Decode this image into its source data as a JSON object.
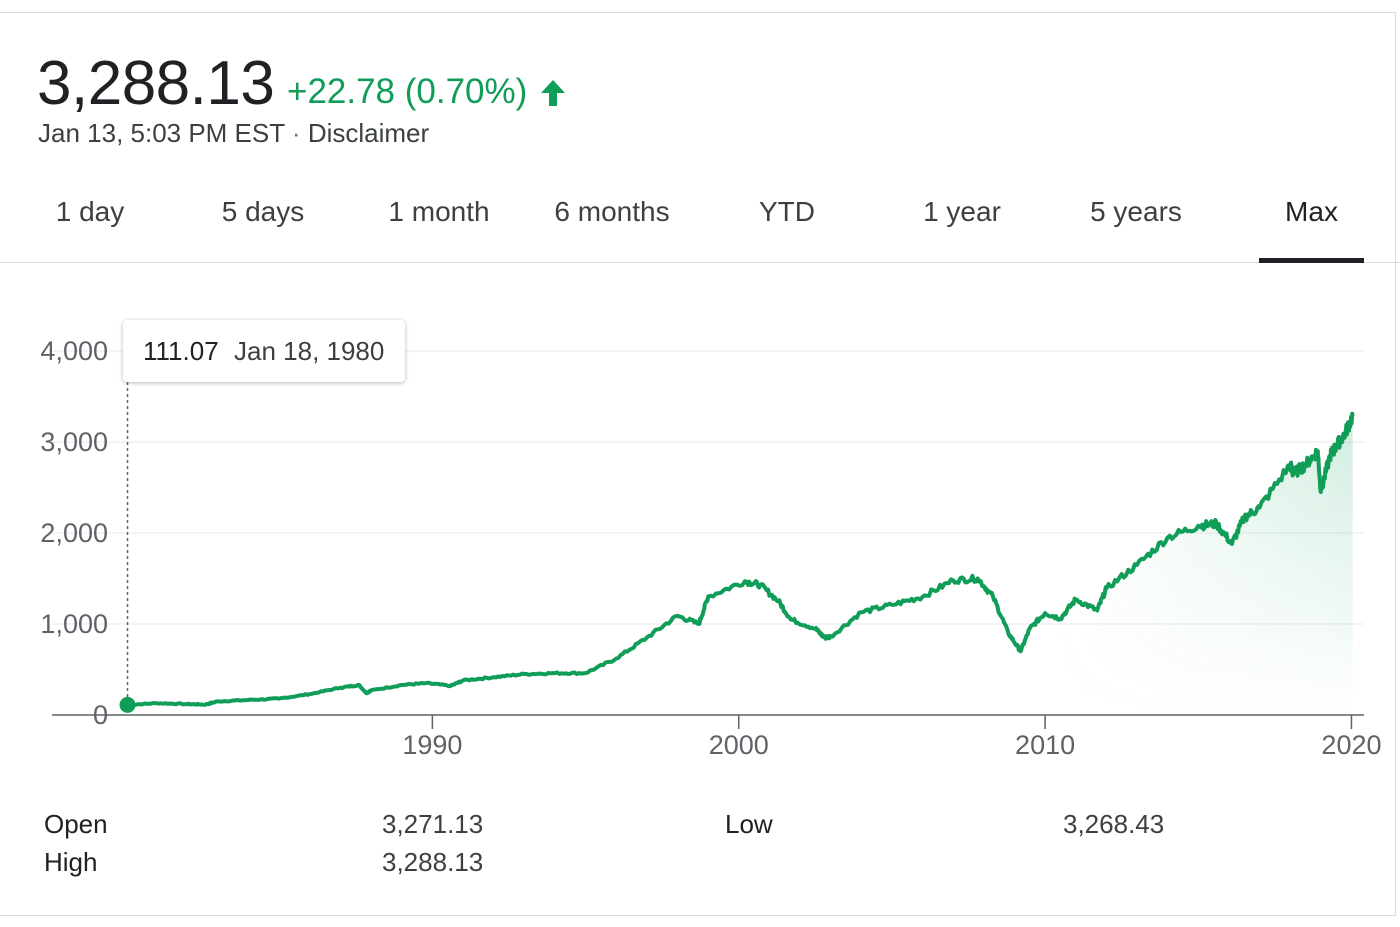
{
  "quote": {
    "price": "3,288.13",
    "change": "+22.78 (0.70%)",
    "direction_icon": "arrow-up-icon",
    "timestamp": "Jan 13, 5:03 PM EST",
    "separator": "·",
    "disclaimer": "Disclaimer"
  },
  "tabs": [
    {
      "label": "1 day",
      "active": false
    },
    {
      "label": "5 days",
      "active": false
    },
    {
      "label": "1 month",
      "active": false
    },
    {
      "label": "6 months",
      "active": false
    },
    {
      "label": "YTD",
      "active": false
    },
    {
      "label": "1 year",
      "active": false
    },
    {
      "label": "5 years",
      "active": false
    },
    {
      "label": "Max",
      "active": true
    }
  ],
  "colors": {
    "accent": "#0f9d58",
    "text": "#202124",
    "muted": "#5f6368",
    "grid": "#e8eaed"
  },
  "tooltip": {
    "value": "111.07",
    "date": "Jan 18, 1980"
  },
  "chart_data": {
    "type": "area",
    "xlabel": "",
    "ylabel": "",
    "xlim": [
      1980,
      2020.05
    ],
    "ylim": [
      0,
      4000
    ],
    "ytick_labels": [
      "0",
      "1,000",
      "2,000",
      "3,000",
      "4,000"
    ],
    "xtick_labels": [
      "1990",
      "2000",
      "2010",
      "2020"
    ],
    "grid": true,
    "x": [
      1980.05,
      1981,
      1982,
      1982.6,
      1983,
      1984,
      1985,
      1986,
      1987,
      1987.6,
      1987.85,
      1988,
      1989,
      1989.8,
      1990.6,
      1991,
      1992,
      1993,
      1994,
      1995,
      1996,
      1997,
      1998,
      1998.7,
      1999,
      2000.2,
      2000.7,
      2001.3,
      2001.7,
      2002.5,
      2002.8,
      2003,
      2004,
      2005,
      2006,
      2007,
      2007.8,
      2008.3,
      2008.8,
      2009.2,
      2009.5,
      2010,
      2010.5,
      2011,
      2011.7,
      2012,
      2013,
      2014,
      2015,
      2015.6,
      2016.1,
      2016.5,
      2017,
      2018,
      2018.1,
      2018.5,
      2018.9,
      2019,
      2019.3,
      2019.5,
      2019.8,
      2020.04
    ],
    "values": [
      111.07,
      130,
      120,
      115,
      150,
      165,
      180,
      230,
      300,
      330,
      240,
      270,
      330,
      350,
      320,
      380,
      415,
      450,
      460,
      460,
      620,
      850,
      1090,
      1000,
      1300,
      1470,
      1430,
      1250,
      1050,
      950,
      850,
      860,
      1130,
      1210,
      1300,
      1480,
      1500,
      1300,
      900,
      700,
      950,
      1120,
      1060,
      1270,
      1150,
      1390,
      1650,
      1950,
      2080,
      2100,
      1880,
      2170,
      2280,
      2750,
      2650,
      2750,
      2900,
      2450,
      2850,
      2950,
      3100,
      3288.13
    ]
  },
  "stats": {
    "open_label": "Open",
    "open_value": "3,271.13",
    "high_label": "High",
    "high_value": "3,288.13",
    "low_label": "Low",
    "low_value": "3,268.43"
  }
}
